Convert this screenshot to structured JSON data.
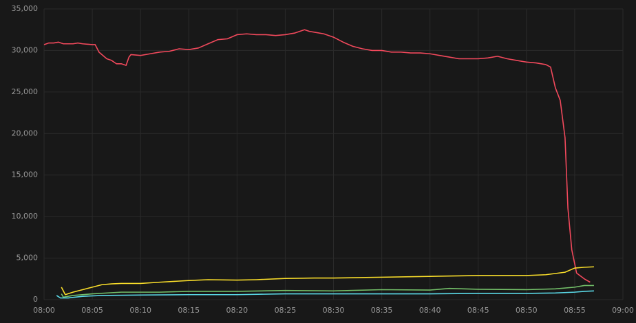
{
  "chart_data": {
    "type": "line",
    "xlim": [
      0,
      60
    ],
    "xticks": [
      {
        "value": 0,
        "label": "08:00"
      },
      {
        "value": 5,
        "label": "08:05"
      },
      {
        "value": 10,
        "label": "08:10"
      },
      {
        "value": 15,
        "label": "08:15"
      },
      {
        "value": 20,
        "label": "08:20"
      },
      {
        "value": 25,
        "label": "08:25"
      },
      {
        "value": 30,
        "label": "08:30"
      },
      {
        "value": 35,
        "label": "08:35"
      },
      {
        "value": 40,
        "label": "08:40"
      },
      {
        "value": 45,
        "label": "08:45"
      },
      {
        "value": 50,
        "label": "08:50"
      },
      {
        "value": 55,
        "label": "08:55"
      },
      {
        "value": 60,
        "label": "09:00"
      }
    ],
    "ylim": [
      0,
      35000
    ],
    "yticks": [
      0,
      {
        "value": 5000,
        "label": "5,000"
      },
      {
        "value": 10000,
        "label": "10,000"
      },
      {
        "value": 15000,
        "label": "15,000"
      },
      {
        "value": 20000,
        "label": "20,000"
      },
      {
        "value": 25000,
        "label": "25,000"
      },
      {
        "value": 30000,
        "label": "30,000"
      },
      {
        "value": 35000,
        "label": "35,000"
      }
    ],
    "grid": true,
    "series": [
      {
        "color": "#f2495c",
        "x": [
          0,
          0.5,
          1,
          1.5,
          2,
          3,
          3.5,
          4,
          5,
          5.3,
          5.7,
          6,
          6.5,
          7,
          7.5,
          8,
          8.5,
          8.8,
          9,
          10,
          11,
          12,
          13,
          14,
          15,
          16,
          17,
          18,
          19,
          20,
          21,
          22,
          23,
          24,
          25,
          26,
          27,
          27.5,
          28,
          29,
          30,
          31,
          32,
          33,
          34,
          35,
          36,
          37,
          38,
          39,
          40,
          41,
          42,
          43,
          44,
          45,
          46,
          47,
          48,
          49,
          50,
          51,
          52,
          52.5,
          53,
          53.5,
          54,
          54.3,
          54.7,
          55.2,
          56,
          56.6
        ],
        "values": [
          30700,
          30900,
          30900,
          31000,
          30800,
          30800,
          30900,
          30800,
          30700,
          30700,
          29800,
          29500,
          29000,
          28800,
          28400,
          28400,
          28200,
          29200,
          29500,
          29400,
          29600,
          29800,
          29900,
          30200,
          30100,
          30300,
          30800,
          31300,
          31400,
          31900,
          32000,
          31900,
          31900,
          31800,
          31900,
          32100,
          32500,
          32300,
          32200,
          32000,
          31600,
          31000,
          30500,
          30200,
          30000,
          30000,
          29800,
          29800,
          29700,
          29700,
          29600,
          29400,
          29200,
          29000,
          29000,
          29000,
          29100,
          29300,
          29000,
          28800,
          28600,
          28500,
          28300,
          28000,
          25500,
          24000,
          19500,
          11000,
          6000,
          3200,
          2500,
          2100
        ]
      },
      {
        "color": "#fade2a",
        "x": [
          1.8,
          2.2,
          3,
          4,
          5,
          6,
          7,
          8,
          10,
          12,
          15,
          17,
          20,
          22,
          25,
          28,
          30,
          35,
          40,
          45,
          50,
          52,
          54,
          55,
          56,
          57
        ],
        "values": [
          1500,
          600,
          900,
          1200,
          1500,
          1800,
          1900,
          1950,
          1950,
          2100,
          2300,
          2400,
          2350,
          2400,
          2550,
          2600,
          2600,
          2700,
          2800,
          2900,
          2900,
          3000,
          3300,
          3800,
          3900,
          3950
        ]
      },
      {
        "color": "#73bf69",
        "x": [
          1.8,
          2,
          3,
          5,
          8,
          12,
          15,
          20,
          25,
          30,
          35,
          40,
          42,
          45,
          50,
          53,
          55,
          56,
          57
        ],
        "values": [
          700,
          300,
          500,
          700,
          900,
          900,
          1000,
          1000,
          1100,
          1050,
          1200,
          1150,
          1350,
          1250,
          1200,
          1300,
          1500,
          1700,
          1700
        ]
      },
      {
        "color": "#5ad8e6",
        "x": [
          1.3,
          1.7,
          2.5,
          4,
          6,
          10,
          15,
          20,
          25,
          30,
          35,
          40,
          45,
          50,
          53,
          55,
          56,
          57
        ],
        "values": [
          500,
          200,
          200,
          400,
          500,
          550,
          600,
          600,
          700,
          700,
          700,
          700,
          750,
          750,
          800,
          900,
          1000,
          1050
        ]
      }
    ]
  }
}
